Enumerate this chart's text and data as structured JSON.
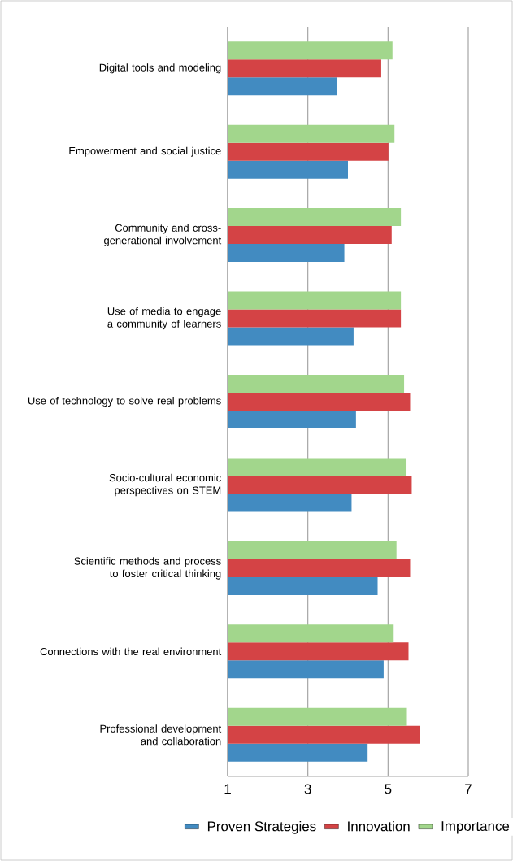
{
  "chart_data": {
    "type": "bar",
    "orientation": "horizontal",
    "categories": [
      "Digital tools and modeling",
      "Empowerment and social justice",
      "Community and cross-generational involvement",
      "Use of media to engage a community of learners",
      "Use of technology to solve real problems",
      "Socio-cultural economic perspectives on STEM",
      "Scientific methods and process to foster critical thinking",
      "Connections with the real environment",
      "Professional development and collaboration"
    ],
    "series": [
      {
        "name": "Proven Strategies",
        "color": "#428bc1",
        "values": [
          3.73,
          4.0,
          3.91,
          4.14,
          4.2,
          4.09,
          4.74,
          4.89,
          4.49
        ]
      },
      {
        "name": "Innovation",
        "color": "#d44345",
        "values": [
          4.83,
          5.01,
          5.09,
          5.32,
          5.55,
          5.59,
          5.55,
          5.51,
          5.8
        ]
      },
      {
        "name": "Importance",
        "color": "#a2d68c",
        "values": [
          5.11,
          5.16,
          5.32,
          5.32,
          5.4,
          5.46,
          5.21,
          5.14,
          5.47
        ]
      }
    ],
    "xlim": [
      1,
      7
    ],
    "xticks": [
      1,
      3,
      5,
      7
    ],
    "grid": "x",
    "legend": "bottom"
  }
}
